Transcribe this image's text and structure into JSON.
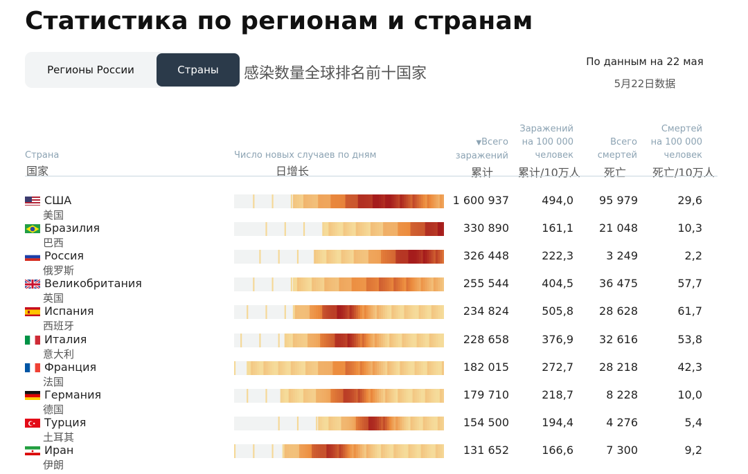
{
  "page": {
    "title": "Статистика по регионам и странам",
    "subtitle_cn": "感染数量全球排名前十国家",
    "date_label": "По данным на 22 мая",
    "date_label_cn": "5月22日数据"
  },
  "tabs": [
    {
      "label": "Регионы России",
      "active": false
    },
    {
      "label": "Страны",
      "active": true
    }
  ],
  "headers": {
    "country": "Страна",
    "country_cn": "国家",
    "daily": "Число новых случаев по дням",
    "daily_cn": "日增长",
    "total_arrow": "▼",
    "total_line1": "Всего",
    "total_line2": "заражений",
    "total_cn": "累计",
    "per100k_line1": "Заражений",
    "per100k_line2": "на 100 000",
    "per100k_line3": "человек",
    "per100k_cn": "累计/10万人",
    "deaths_line1": "Всего",
    "deaths_line2": "смертей",
    "deaths_cn": "死亡",
    "deaths100k_line1": "Смертей",
    "deaths100k_line2": "на 100 000",
    "deaths100k_line3": "человек",
    "deaths100k_cn": "死亡/10万人"
  },
  "colors": {
    "accent_dark": "#2b3a4a",
    "header_text": "#8ca3b3",
    "heat_low": "#f5dfa0",
    "heat_mid": "#e8893a",
    "heat_high": "#a51c1c",
    "bar_bg": "#f1f3f3"
  },
  "rows": [
    {
      "flag": "us",
      "name": "США",
      "name_cn": "美国",
      "total": "1 600 937",
      "per100k": "494,0",
      "deaths": "95 979",
      "deaths100k": "29,6",
      "start": 0.28,
      "peak": 0.7,
      "spread": 0.25,
      "intensity": 1.0
    },
    {
      "flag": "br",
      "name": "Бразилия",
      "name_cn": "巴西",
      "total": "330 890",
      "per100k": "161,1",
      "deaths": "21 048",
      "deaths100k": "10,3",
      "start": 0.42,
      "peak": 0.98,
      "spread": 0.2,
      "intensity": 0.95
    },
    {
      "flag": "ru",
      "name": "Россия",
      "name_cn": "俄罗斯",
      "total": "326 448",
      "per100k": "222,3",
      "deaths": "3 249",
      "deaths100k": "2,2",
      "start": 0.38,
      "peak": 0.86,
      "spread": 0.18,
      "intensity": 1.0
    },
    {
      "flag": "gb",
      "name": "Великобритания",
      "name_cn": "英国",
      "total": "255 544",
      "per100k": "404,5",
      "deaths": "36 475",
      "deaths100k": "57,7",
      "start": 0.28,
      "peak": 0.72,
      "spread": 0.22,
      "intensity": 0.6
    },
    {
      "flag": "es",
      "name": "Испания",
      "name_cn": "西班牙",
      "total": "234 824",
      "per100k": "505,8",
      "deaths": "28 628",
      "deaths100k": "61,7",
      "start": 0.28,
      "peak": 0.5,
      "spread": 0.13,
      "intensity": 0.95
    },
    {
      "flag": "it",
      "name": "Италия",
      "name_cn": "意大利",
      "total": "228 658",
      "per100k": "376,9",
      "deaths": "32 616",
      "deaths100k": "53,8",
      "start": 0.24,
      "peak": 0.52,
      "spread": 0.13,
      "intensity": 0.9
    },
    {
      "flag": "fr",
      "name": "Франция",
      "name_cn": "法国",
      "total": "182 015",
      "per100k": "272,7",
      "deaths": "28 218",
      "deaths100k": "42,3",
      "start": 0.06,
      "peak": 0.55,
      "spread": 0.13,
      "intensity": 0.55
    },
    {
      "flag": "de",
      "name": "Германия",
      "name_cn": "德国",
      "total": "179 710",
      "per100k": "218,7",
      "deaths": "8 228",
      "deaths100k": "10,0",
      "start": 0.22,
      "peak": 0.55,
      "spread": 0.12,
      "intensity": 0.8
    },
    {
      "flag": "tr",
      "name": "Турция",
      "name_cn": "土耳其",
      "total": "154 500",
      "per100k": "194,4",
      "deaths": "4 276",
      "deaths100k": "5,4",
      "start": 0.4,
      "peak": 0.66,
      "spread": 0.1,
      "intensity": 0.9
    },
    {
      "flag": "ir",
      "name": "Иран",
      "name_cn": "伊朗",
      "total": "131 652",
      "per100k": "166,6",
      "deaths": "7 300",
      "deaths100k": "9,2",
      "start": 0.23,
      "peak": 0.45,
      "spread": 0.13,
      "intensity": 0.85
    }
  ]
}
